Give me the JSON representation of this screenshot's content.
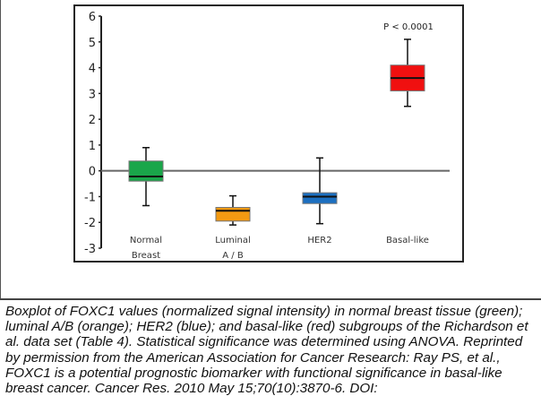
{
  "chart_data": {
    "type": "boxplot",
    "title": "",
    "xlabel": "",
    "ylabel": "",
    "ylim": [
      -3,
      6
    ],
    "yticks": [
      "6",
      "5",
      "4",
      "3",
      "2",
      "1",
      "0",
      "-1",
      "-2",
      "-3"
    ],
    "annotation": "P < 0.0001",
    "categories": [
      {
        "line1": "Normal",
        "line2": "Breast",
        "color": "#1aa64a",
        "whisker_high": 0.9,
        "q3": 0.38,
        "median": -0.22,
        "q1": -0.4,
        "whisker_low": -1.35
      },
      {
        "line1": "Luminal",
        "line2": "A / B",
        "color": "#f39a12",
        "whisker_high": -0.97,
        "q3": -1.42,
        "median": -1.55,
        "q1": -1.95,
        "whisker_low": -2.1
      },
      {
        "line1": "HER2",
        "line2": "",
        "color": "#1c6fc0",
        "whisker_high": 0.5,
        "q3": -0.85,
        "median": -1.0,
        "q1": -1.27,
        "whisker_low": -2.05
      },
      {
        "line1": "Basal-like",
        "line2": "",
        "color": "#f01010",
        "whisker_high": 5.1,
        "q3": 4.1,
        "median": 3.6,
        "q1": 3.1,
        "whisker_low": 2.5
      }
    ]
  },
  "caption": "Boxplot of FOXC1 values (normalized signal intensity) in normal breast tissue (green); luminal A/B (orange); HER2 (blue); and basal-like (red) subgroups of the Richardson et al. data set (Table 4). Statistical significance was determined using ANOVA.  Reprinted by permission from the American Association for Cancer Research: Ray PS, et al., FOXC1 is a potential prognostic biomarker with functional significance in basal-like breast cancer. Cancer Res. 2010 May 15;70(10):3870-6.  DOI:"
}
